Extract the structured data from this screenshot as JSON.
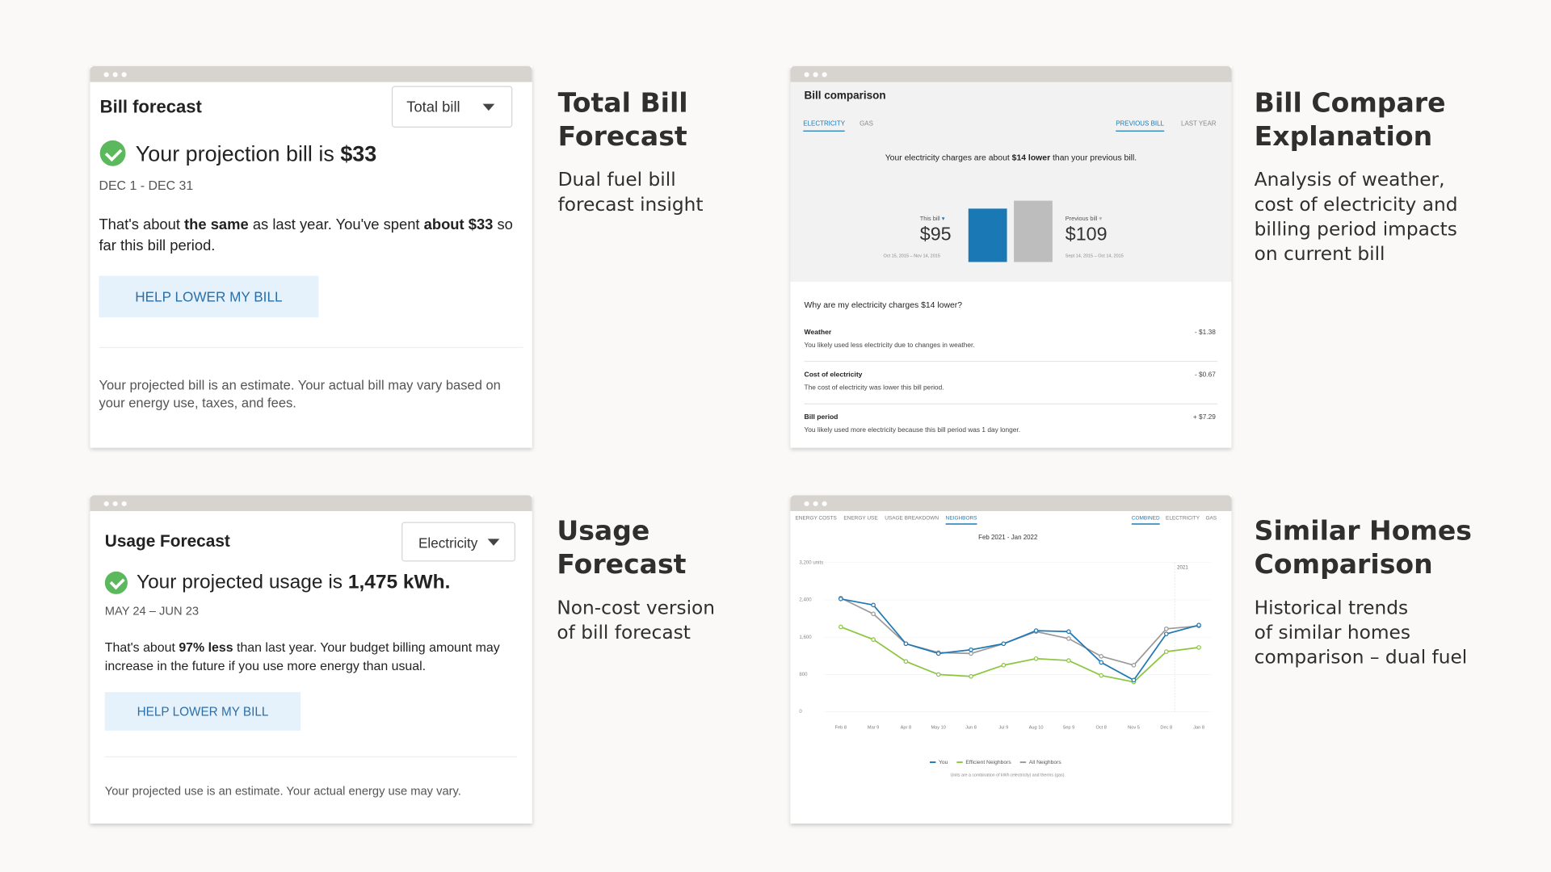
{
  "cards": [
    {
      "title": "Bill forecast",
      "dropdown": "Total bill",
      "headline": [
        "Your projection bill is ",
        "$33"
      ],
      "period": "DEC 1 - DEC 31",
      "body": [
        "That's about ",
        "the same",
        " as last year. You've spent ",
        "about $33",
        " so far this bill period."
      ],
      "button": "HELP LOWER MY BILL",
      "footnote": "Your projected bill is an estimate. Your actual bill may vary based on your energy use, taxes, and fees."
    },
    {
      "title": "Bill comparison",
      "tabs_left": [
        "ELECTRICITY",
        "GAS"
      ],
      "tabs_right": [
        "PREVIOUS BILL",
        "LAST YEAR"
      ],
      "summary": [
        "Your electricity charges are about ",
        "$14 lower",
        " than your previous bill."
      ],
      "bars": [
        {
          "label": "This bill",
          "value": 95,
          "value_label": "$95",
          "dates": "Oct 15, 2015 – Nov 14, 2015",
          "color": "#1a78b5"
        },
        {
          "label": "Previous bill",
          "value": 109,
          "value_label": "$109",
          "dates": "Sept 14, 2015 – Oct 14, 2015",
          "color": "#bdbdbd"
        }
      ],
      "question": "Why are my electricity charges $14 lower?",
      "reasons": [
        {
          "label": "Weather",
          "text": "You likely used less electricity due to changes in weather.",
          "amount": "- $1.38"
        },
        {
          "label": "Cost of electricity",
          "text": "The cost of electricity was lower this bill period.",
          "amount": "- $0.67"
        },
        {
          "label": "Bill period",
          "text": "You likely used more electricity because this bill period was 1 day longer.",
          "amount": "+ $7.29"
        }
      ]
    },
    {
      "title": "Usage Forecast",
      "dropdown": "Electricity",
      "headline": [
        "Your projected usage is ",
        "1,475 kWh."
      ],
      "period": "MAY 24 – JUN 23",
      "body": [
        "That's about ",
        "97% less",
        " than last year. Your budget billing amount may increase in the future if you use more energy than usual."
      ],
      "button": "HELP LOWER MY BILL",
      "footnote": "Your projected use is an estimate. Your actual energy use may vary."
    },
    {
      "tabs_left": [
        "ENERGY COSTS",
        "ENERGY USE",
        "USAGE BREAKDOWN",
        "NEIGHBORS"
      ],
      "tabs_right": [
        "COMBINED",
        "ELECTRICITY",
        "GAS"
      ]
    }
  ],
  "chart_data": {
    "type": "line",
    "subtitle": "Feb 2021 - Jan 2022",
    "annotation": "2021",
    "categories": [
      "Feb 8",
      "Mar 9",
      "Apr 8",
      "May 10",
      "Jun 8",
      "Jul 9",
      "Aug 10",
      "Sep 9",
      "Oct 8",
      "Nov 5",
      "Dec 8",
      "Jan 8"
    ],
    "series": [
      {
        "name": "You",
        "color": "#1f78b4",
        "values": [
          2420,
          2290,
          1460,
          1250,
          1330,
          1460,
          1740,
          1720,
          1060,
          680,
          1670,
          1860
        ]
      },
      {
        "name": "Efficient Neighbors",
        "color": "#8cc63f",
        "values": [
          1820,
          1550,
          1080,
          800,
          760,
          1000,
          1140,
          1100,
          780,
          640,
          1290,
          1380
        ]
      },
      {
        "name": "All Neighbors",
        "color": "#9a9a9a",
        "values": [
          2440,
          2100,
          1460,
          1270,
          1250,
          1460,
          1720,
          1570,
          1190,
          1000,
          1780,
          1840
        ]
      }
    ],
    "ylim": [
      0,
      3200
    ],
    "yticks": [
      0,
      800,
      {
        "value": 1600,
        "label": "1,600"
      },
      {
        "value": 2400,
        "label": "2,400"
      },
      {
        "value": 3200,
        "label": "3,200 units"
      }
    ],
    "grid": true,
    "footnote": "Units are a combination of kWh (electricity) and therms (gas)."
  },
  "captions": [
    {
      "title": [
        "Total Bill",
        "Forecast"
      ],
      "body": [
        "Dual fuel bill",
        "forecast insight"
      ]
    },
    {
      "title": [
        "Bill Compare",
        "Explanation"
      ],
      "body": [
        "Analysis of weather,",
        "cost of electricity and",
        "billing period impacts",
        "on current bill"
      ]
    },
    {
      "title": [
        "Usage",
        "Forecast"
      ],
      "body": [
        "Non-cost version",
        "of bill forecast"
      ]
    },
    {
      "title": [
        "Similar Homes",
        "Comparison"
      ],
      "body": [
        "Historical trends",
        "of similar homes",
        "comparison – dual fuel"
      ]
    }
  ]
}
